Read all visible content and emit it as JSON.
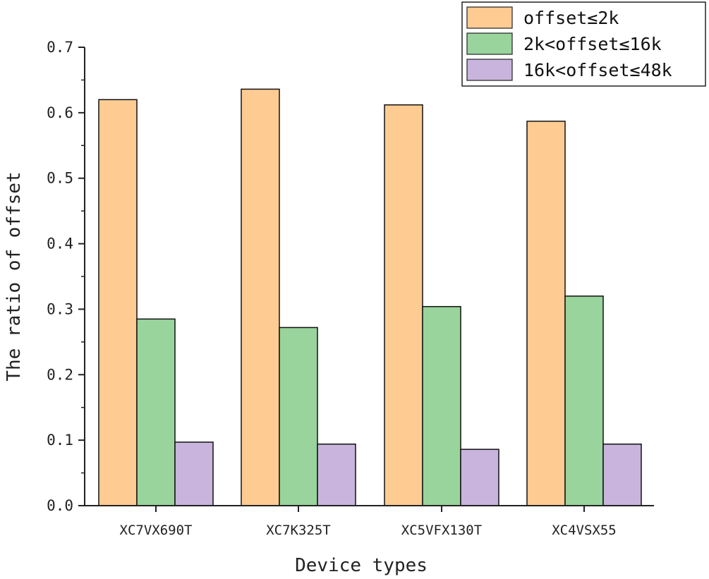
{
  "chart_data": {
    "type": "bar",
    "title": "",
    "xlabel": "Device types",
    "ylabel": "The ratio of offset",
    "categories": [
      "XC7VX690T",
      "XC7K325T",
      "XC5VFX130T",
      "XC4VSX55"
    ],
    "series": [
      {
        "name": "offset≤2k",
        "color": "#FECB93",
        "values": [
          0.62,
          0.636,
          0.612,
          0.587
        ]
      },
      {
        "name": "2k<offset≤16k",
        "color": "#99D49C",
        "values": [
          0.285,
          0.272,
          0.304,
          0.32
        ]
      },
      {
        "name": "16k<offset≤48k",
        "color": "#C8B4DC",
        "values": [
          0.097,
          0.094,
          0.086,
          0.094
        ]
      }
    ],
    "ylim": [
      0,
      0.7
    ],
    "yticks": [
      "0.0",
      "0.1",
      "0.2",
      "0.3",
      "0.4",
      "0.5",
      "0.6",
      "0.7"
    ],
    "grid": false,
    "legend_position": "top-right"
  }
}
